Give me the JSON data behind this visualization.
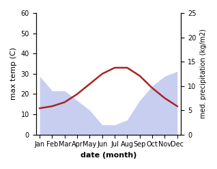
{
  "months": [
    "Jan",
    "Feb",
    "Mar",
    "Apr",
    "May",
    "Jun",
    "Jul",
    "Aug",
    "Sep",
    "Oct",
    "Nov",
    "Dec"
  ],
  "month_positions": [
    0,
    1,
    2,
    3,
    4,
    5,
    6,
    7,
    8,
    9,
    10,
    11
  ],
  "max_temp": [
    13,
    14,
    16,
    20,
    25,
    30,
    33,
    33,
    29,
    23,
    18,
    14
  ],
  "precipitation": [
    12,
    9,
    9,
    7,
    5,
    2,
    2,
    3,
    7,
    10,
    12,
    13
  ],
  "temp_ylim": [
    0,
    60
  ],
  "precip_ylim": [
    0,
    25
  ],
  "temp_color": "#aa2222",
  "precip_color": "#aab4e8",
  "precip_fill_alpha": 0.65,
  "xlabel": "date (month)",
  "ylabel_left": "max temp (C)",
  "ylabel_right": "med. precipitation (kg/m2)",
  "temp_linewidth": 1.8,
  "label_fontsize": 7,
  "xlabel_fontsize": 8,
  "ylabel_fontsize": 8,
  "ylabel_right_fontsize": 7
}
